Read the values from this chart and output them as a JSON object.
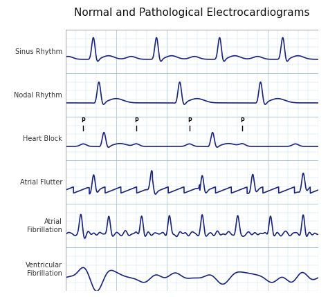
{
  "title": "Normal and Pathological Electrocardiograms",
  "title_fontsize": 11,
  "labels": [
    "Sinus Rhythm",
    "Nodal Rhythm",
    "Heart Block",
    "Atrial Flutter",
    "Atrial\nFibrillation",
    "Ventricular\nFibrillation"
  ],
  "ecg_color": "#1a237e",
  "bg_color": "#ddeef5",
  "grid_minor_color": "#b8d4e0",
  "grid_major_color": "#9bbfd0",
  "outer_bg": "#ffffff",
  "line_width": 1.2,
  "figsize": [
    4.74,
    4.3
  ],
  "dpi": 100,
  "label_fontsize": 7.0,
  "label_color": "#333333",
  "p_marker_color": "#000000"
}
